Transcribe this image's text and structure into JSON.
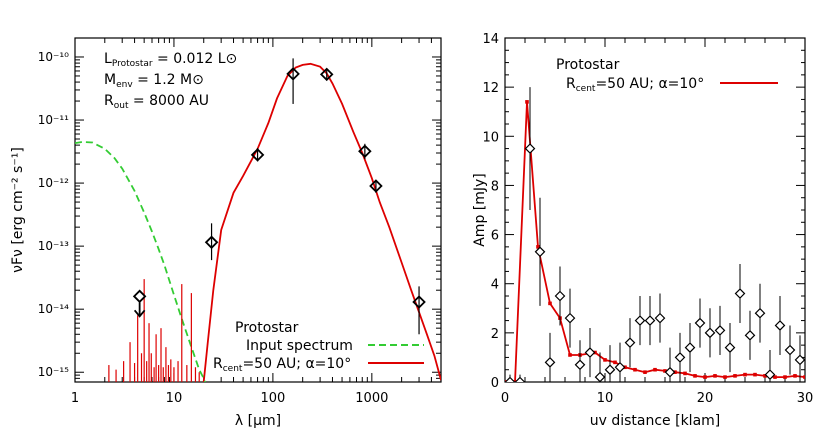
{
  "chart_data": [
    {
      "type": "line",
      "scale": "log-log",
      "xlabel": "λ [μm]",
      "ylabel": "νFν [erg cm⁻² s⁻¹]",
      "xlim": [
        1,
        5000
      ],
      "ylim": [
        7e-16,
        2e-10
      ],
      "x_ticks": [
        "1",
        "10",
        "100",
        "1000"
      ],
      "y_ticks": [
        "10⁻¹⁵",
        "10⁻¹⁴",
        "10⁻¹³",
        "10⁻¹²",
        "10⁻¹¹",
        "10⁻¹⁰"
      ],
      "annotations": [
        "L_Protostar = 0.012 L⊙",
        "M_env = 1.2 M⊙",
        "R_out = 8000 AU"
      ],
      "legend": {
        "title": "Protostar",
        "entries": [
          "Input spectrum",
          "R_cent=50 AU; α=10°"
        ],
        "placement": "bottom-right"
      },
      "series": [
        {
          "name": "R_cent=50 AU; α=10°",
          "color": "#dd0000",
          "style": "solid",
          "x": [
            20,
            22,
            25,
            30,
            40,
            50,
            70,
            90,
            110,
            140,
            170,
            200,
            240,
            300,
            350,
            400,
            500,
            650,
            800,
            1000,
            1200,
            1500,
            2000,
            2500,
            3000,
            3600,
            4300,
            5000
          ],
          "y": [
            7e-16,
            3e-15,
            2e-14,
            1.8e-13,
            7e-13,
            1.3e-12,
            3.5e-12,
            9e-12,
            2.2e-11,
            5e-11,
            6.8e-11,
            7.5e-11,
            7.8e-11,
            7e-11,
            5.5e-11,
            3.8e-11,
            1.8e-11,
            6.5e-12,
            3e-12,
            1.2e-12,
            5e-13,
            2e-13,
            5.5e-14,
            2e-14,
            9e-15,
            4e-15,
            1.8e-15,
            7.5e-16
          ]
        },
        {
          "name": "Input spectrum",
          "color": "#33cc33",
          "style": "dashed",
          "x": [
            1,
            1.2,
            1.5,
            2,
            2.5,
            3,
            4,
            5,
            6,
            7,
            8,
            10,
            12,
            15,
            18,
            20,
            25
          ],
          "y": [
            4.3e-12,
            4.5e-12,
            4.4e-12,
            3.5e-12,
            2.5e-12,
            1.7e-12,
            7.5e-13,
            3.4e-13,
            1.7e-13,
            9e-14,
            5e-14,
            1.7e-14,
            7e-15,
            2.5e-15,
            1.1e-15,
            8e-16,
            3e-16
          ]
        }
      ],
      "points": {
        "marker": "diamond",
        "x": [
          4.5,
          24,
          70,
          160,
          350,
          850,
          1100,
          3000
        ],
        "y": [
          1.6e-14,
          1.15e-13,
          2.8e-12,
          5.4e-11,
          5.3e-11,
          3.2e-12,
          9e-13,
          1.3e-14
        ],
        "err_lo": [
          null,
          6e-14,
          2.2e-12,
          1.8e-11,
          4.3e-11,
          2.4e-12,
          7e-13,
          4e-15
        ],
        "err_hi": [
          null,
          2.3e-13,
          3.6e-12,
          9.5e-11,
          6.3e-11,
          4.2e-12,
          1.1e-12,
          2.3e-14
        ],
        "upper_limit": [
          true,
          false,
          false,
          false,
          false,
          false,
          false,
          false
        ]
      }
    },
    {
      "type": "scatter",
      "xlabel": "uv distance [klam]",
      "ylabel": "Amp [mJy]",
      "xlim": [
        0,
        30
      ],
      "ylim": [
        0,
        14
      ],
      "x_ticks": [
        "0",
        "10",
        "20",
        "30"
      ],
      "y_ticks": [
        "0",
        "2",
        "4",
        "6",
        "8",
        "10",
        "12",
        "14"
      ],
      "legend": {
        "title": "Protostar",
        "entries": [
          "R_cent=50 AU; α=10°"
        ],
        "placement": "top-left"
      },
      "observed": {
        "marker": "diamond",
        "x": [
          0.5,
          1.5,
          2.5,
          3.5,
          4.5,
          5.5,
          6.5,
          7.5,
          8.5,
          9.5,
          10.5,
          11.5,
          12.5,
          13.5,
          14.5,
          15.5,
          16.5,
          17.5,
          18.5,
          19.5,
          20.5,
          21.5,
          22.5,
          23.5,
          24.5,
          25.5,
          26.5,
          27.5,
          28.5,
          29.5
        ],
        "y": [
          0,
          0,
          9.5,
          5.3,
          0.8,
          3.5,
          2.6,
          0.7,
          1.2,
          0.2,
          0.5,
          0.6,
          1.6,
          2.5,
          2.5,
          2.6,
          0.4,
          1.0,
          1.4,
          2.4,
          2.0,
          2.1,
          1.4,
          3.6,
          1.9,
          2.8,
          0.3,
          2.3,
          1.3,
          0.9
        ],
        "err": [
          0.3,
          0.3,
          2.5,
          2.2,
          1.2,
          1.2,
          1.2,
          1.0,
          1.0,
          1.0,
          1.0,
          1.0,
          1.0,
          1.0,
          1.0,
          1.0,
          1.0,
          1.0,
          1.0,
          1.0,
          1.0,
          1.0,
          1.0,
          1.2,
          1.0,
          1.2,
          1.0,
          1.2,
          1.0,
          1.0
        ]
      },
      "series": [
        {
          "name": "R_cent=50 AU; α=10°",
          "color": "#dd0000",
          "x": [
            0,
            1,
            2.2,
            3.3,
            4.5,
            5.5,
            6.5,
            7.5,
            9,
            10,
            11,
            12,
            13,
            14,
            15,
            16,
            17,
            18,
            19,
            20,
            21,
            22,
            23,
            24,
            25,
            26,
            27,
            28,
            29,
            30
          ],
          "y": [
            0,
            0,
            11.4,
            5.5,
            3.2,
            2.6,
            1.1,
            1.1,
            1.2,
            0.9,
            0.8,
            0.6,
            0.5,
            0.4,
            0.5,
            0.45,
            0.4,
            0.35,
            0.25,
            0.2,
            0.25,
            0.2,
            0.25,
            0.3,
            0.3,
            0.25,
            0.2,
            0.2,
            0.25,
            0.2
          ]
        }
      ]
    }
  ],
  "texts": {
    "left": {
      "xlabel": "λ [μm]",
      "ylabel": "νFν [erg cm⁻² s⁻¹]",
      "ann1_main": "L",
      "ann1_sub": "Protostar",
      "ann1_rest": " = 0.012 L⊙",
      "ann2_main": "M",
      "ann2_sub": "env",
      "ann2_rest": " = 1.2 M⊙",
      "ann3_main": "R",
      "ann3_sub": "out",
      "ann3_rest": " = 8000 AU",
      "legend_title": "Protostar",
      "legend_input": "Input spectrum",
      "legend_model_main": "R",
      "legend_model_sub": "cent",
      "legend_model_rest": "=50 AU; α=10°"
    },
    "right": {
      "xlabel": "uv distance [klam]",
      "ylabel": "Amp [mJy]",
      "legend_title": "Protostar",
      "legend_model_main": "R",
      "legend_model_sub": "cent",
      "legend_model_rest": "=50 AU; α=10°"
    }
  }
}
